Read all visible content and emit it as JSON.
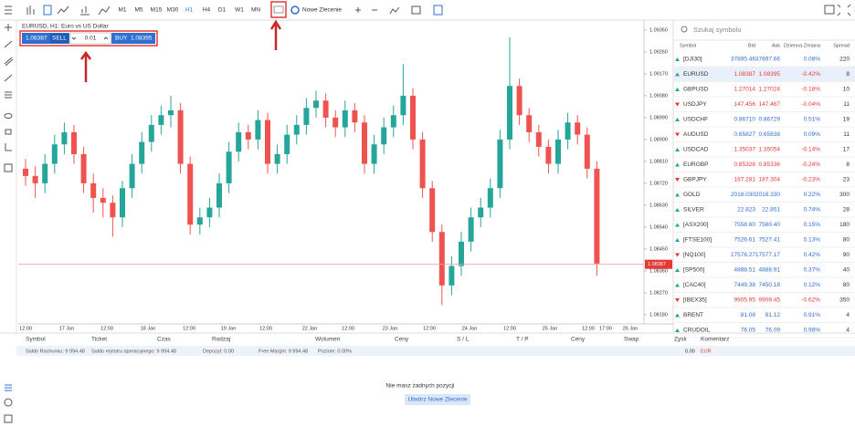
{
  "toolbar": {
    "timeframes": [
      "M1",
      "M5",
      "M15",
      "M30",
      "H1",
      "H4",
      "D1",
      "W1",
      "MN"
    ],
    "new_order": "Nowe Zlecenie"
  },
  "chart_data": {
    "type": "candlestick",
    "title": "EURUSD, H1: Euro vs US Dollar",
    "trade_panel": {
      "sell_price": "1.08387",
      "sell": "SELL",
      "volume": "0.01",
      "buy": "BUY",
      "buy_price": "1.08395"
    },
    "candles": [
      [
        1.0878,
        1.0882,
        1.0871,
        1.0875
      ],
      [
        1.0875,
        1.0879,
        1.0866,
        1.0872
      ],
      [
        1.0872,
        1.0884,
        1.0868,
        1.088
      ],
      [
        1.088,
        1.0892,
        1.0876,
        1.0888
      ],
      [
        1.0888,
        1.0897,
        1.0884,
        1.0893
      ],
      [
        1.0893,
        1.0896,
        1.088,
        1.0884
      ],
      [
        1.0884,
        1.0887,
        1.0868,
        1.0872
      ],
      [
        1.0872,
        1.0876,
        1.086,
        1.0866
      ],
      [
        1.0866,
        1.087,
        1.0858,
        1.0864
      ],
      [
        1.0864,
        1.0867,
        1.085,
        1.0858
      ],
      [
        1.0858,
        1.0873,
        1.0854,
        1.087
      ],
      [
        1.087,
        1.0884,
        1.0866,
        1.088
      ],
      [
        1.088,
        1.0893,
        1.0876,
        1.0889
      ],
      [
        1.0889,
        1.09,
        1.0885,
        1.0896
      ],
      [
        1.0896,
        1.0904,
        1.0892,
        1.09
      ],
      [
        1.09,
        1.0908,
        1.0895,
        1.0902
      ],
      [
        1.0902,
        1.0905,
        1.0876,
        1.088
      ],
      [
        1.088,
        1.0883,
        1.0851,
        1.0855
      ],
      [
        1.0855,
        1.0862,
        1.0851,
        1.0858
      ],
      [
        1.0858,
        1.0866,
        1.0854,
        1.0862
      ],
      [
        1.0862,
        1.0876,
        1.0858,
        1.0872
      ],
      [
        1.0872,
        1.0889,
        1.0868,
        1.0885
      ],
      [
        1.0885,
        1.0897,
        1.0881,
        1.0893
      ],
      [
        1.0893,
        1.0896,
        1.0886,
        1.089
      ],
      [
        1.089,
        1.0902,
        1.0886,
        1.0898
      ],
      [
        1.0898,
        1.0901,
        1.0876,
        1.088
      ],
      [
        1.088,
        1.0888,
        1.0876,
        1.0884
      ],
      [
        1.0884,
        1.0896,
        1.088,
        1.0892
      ],
      [
        1.0892,
        1.09,
        1.0888,
        1.0896
      ],
      [
        1.0896,
        1.0907,
        1.0892,
        1.0903
      ],
      [
        1.0903,
        1.091,
        1.0899,
        1.0906
      ],
      [
        1.0906,
        1.0909,
        1.0895,
        1.0899
      ],
      [
        1.0899,
        1.0902,
        1.0891,
        1.0895
      ],
      [
        1.0895,
        1.0906,
        1.0891,
        1.0902
      ],
      [
        1.0902,
        1.0905,
        1.0893,
        1.0897
      ],
      [
        1.0897,
        1.09,
        1.0876,
        1.088
      ],
      [
        1.088,
        1.0892,
        1.0876,
        1.0888
      ],
      [
        1.0888,
        1.0899,
        1.0884,
        1.0895
      ],
      [
        1.0895,
        1.0904,
        1.0891,
        1.09
      ],
      [
        1.09,
        1.0921,
        1.0896,
        1.0908
      ],
      [
        1.0908,
        1.0911,
        1.0886,
        1.089
      ],
      [
        1.089,
        1.0893,
        1.0866,
        1.087
      ],
      [
        1.087,
        1.0873,
        1.0848,
        1.0852
      ],
      [
        1.0852,
        1.0855,
        1.0822,
        1.083
      ],
      [
        1.083,
        1.0842,
        1.0826,
        1.0838
      ],
      [
        1.0838,
        1.0852,
        1.0834,
        1.0848
      ],
      [
        1.0848,
        1.0862,
        1.0844,
        1.0858
      ],
      [
        1.0858,
        1.0866,
        1.0854,
        1.0862
      ],
      [
        1.0862,
        1.0874,
        1.0858,
        1.087
      ],
      [
        1.087,
        1.0894,
        1.0866,
        1.089
      ],
      [
        1.089,
        1.0932,
        1.0886,
        1.0912
      ],
      [
        1.0912,
        1.0915,
        1.0896,
        1.09
      ],
      [
        1.09,
        1.0903,
        1.0889,
        1.0893
      ],
      [
        1.0893,
        1.0896,
        1.0883,
        1.0887
      ],
      [
        1.0887,
        1.089,
        1.0876,
        1.088
      ],
      [
        1.088,
        1.0894,
        1.0876,
        1.089
      ],
      [
        1.089,
        1.0901,
        1.0886,
        1.0897
      ],
      [
        1.0897,
        1.09,
        1.0888,
        1.0892
      ],
      [
        1.0892,
        1.0895,
        1.0874,
        1.0878
      ],
      [
        1.0878,
        1.0881,
        1.0834,
        1.0839
      ]
    ],
    "up_color": "#26a69a",
    "down_color": "#ef5350",
    "ylim": [
      1.08142,
      1.09391
    ],
    "yticks": [
      {
        "value": 1.0935,
        "label": "1.09350"
      },
      {
        "value": 1.0926,
        "label": "1.09260"
      },
      {
        "value": 1.0917,
        "label": "1.09170"
      },
      {
        "value": 1.0908,
        "label": "1.09080"
      },
      {
        "value": 1.0899,
        "label": "1.08990"
      },
      {
        "value": 1.089,
        "label": "1.08900"
      },
      {
        "value": 1.0881,
        "label": "1.08810"
      },
      {
        "value": 1.0872,
        "label": "1.08720"
      },
      {
        "value": 1.0863,
        "label": "1.08630"
      },
      {
        "value": 1.0854,
        "label": "1.08540"
      },
      {
        "value": 1.0845,
        "label": "1.08450"
      },
      {
        "value": 1.0836,
        "label": "1.08360"
      },
      {
        "value": 1.0827,
        "label": "1.08270"
      },
      {
        "value": 1.0818,
        "label": "1.08180"
      }
    ],
    "x_labels": [
      "12:00",
      "17 Jan",
      "12:00",
      "18 Jan",
      "12:00",
      "19 Jan",
      "12:00",
      "22 Jan",
      "12:00",
      "23 Jan",
      "12:00",
      "24 Jan",
      "12:00",
      "25 Jan",
      "12:00",
      "17:00",
      "26 Jan"
    ],
    "current_price": 1.08387
  },
  "watchlist": {
    "search": "Szukaj symbolu",
    "columns": [
      "Symbol",
      "Bid",
      "Ask",
      "Dzienna Zmiana",
      "Spread"
    ],
    "rows": [
      [
        "[DJI30]",
        "37895.46",
        "37897.66",
        "0.08%",
        "220"
      ],
      [
        "EURUSD",
        "1.08387",
        "1.08395",
        "-0.42%",
        "8"
      ],
      [
        "GBPUSD",
        "1.27014",
        "1.27024",
        "-0.18%",
        "10"
      ],
      [
        "USDJPY",
        "147.456",
        "147.467",
        "-0.04%",
        "11"
      ],
      [
        "USDCHF",
        "0.86710",
        "0.86729",
        "0.51%",
        "19"
      ],
      [
        "AUDUSD",
        "0.65827",
        "0.65838",
        "0.09%",
        "11"
      ],
      [
        "USDCAD",
        "1.35037",
        "1.35054",
        "-0.14%",
        "17"
      ],
      [
        "EURGBP",
        "0.85328",
        "0.85336",
        "-0.24%",
        "8"
      ],
      [
        "GBPJPY",
        "187.281",
        "187.304",
        "-0.23%",
        "23"
      ],
      [
        "GOLD",
        "2018.030",
        "2018.330",
        "0.22%",
        "300"
      ],
      [
        "SILVER",
        "22.823",
        "22.851",
        "0.74%",
        "28"
      ],
      [
        "[ASX200]",
        "7558.60",
        "7560.40",
        "0.15%",
        "180"
      ],
      [
        "[FTSE100]",
        "7526.61",
        "7527.41",
        "0.13%",
        "80"
      ],
      [
        "[NQ100]",
        "17576.27",
        "17577.17",
        "0.42%",
        "90"
      ],
      [
        "[SP500]",
        "4888.51",
        "4888.91",
        "0.37%",
        "40"
      ],
      [
        "[CAC40]",
        "7449.38",
        "7450.18",
        "0.12%",
        "80"
      ],
      [
        "[IBEX35]",
        "9905.95",
        "9909.45",
        "-0.62%",
        "350"
      ],
      [
        "BRENT",
        "81.08",
        "81.12",
        "0.91%",
        "4"
      ],
      [
        "CRUDOIL",
        "76.05",
        "76.09",
        "0.98%",
        "4"
      ]
    ]
  },
  "positions": {
    "columns": [
      "Symbol",
      "Ticket",
      "Czas",
      "Rodzaj",
      "Wolumen",
      "Ceny",
      "S / L",
      "T / P",
      "Ceny",
      "Swap",
      "Zysk",
      "Komentarz"
    ],
    "account": [
      "Saldo Rachunku: 9 994.48",
      "Saldo rejestru operacyjnego: 9 994.48",
      "Depozyt: 0.00",
      "Free Margin: 9 994.48",
      "Poziom: 0.00%"
    ],
    "profit": "0.00",
    "currency": "EUR",
    "empty": "Nie masz żadnych pozycji",
    "button": "Utwórz Nowe Zlecenie"
  }
}
